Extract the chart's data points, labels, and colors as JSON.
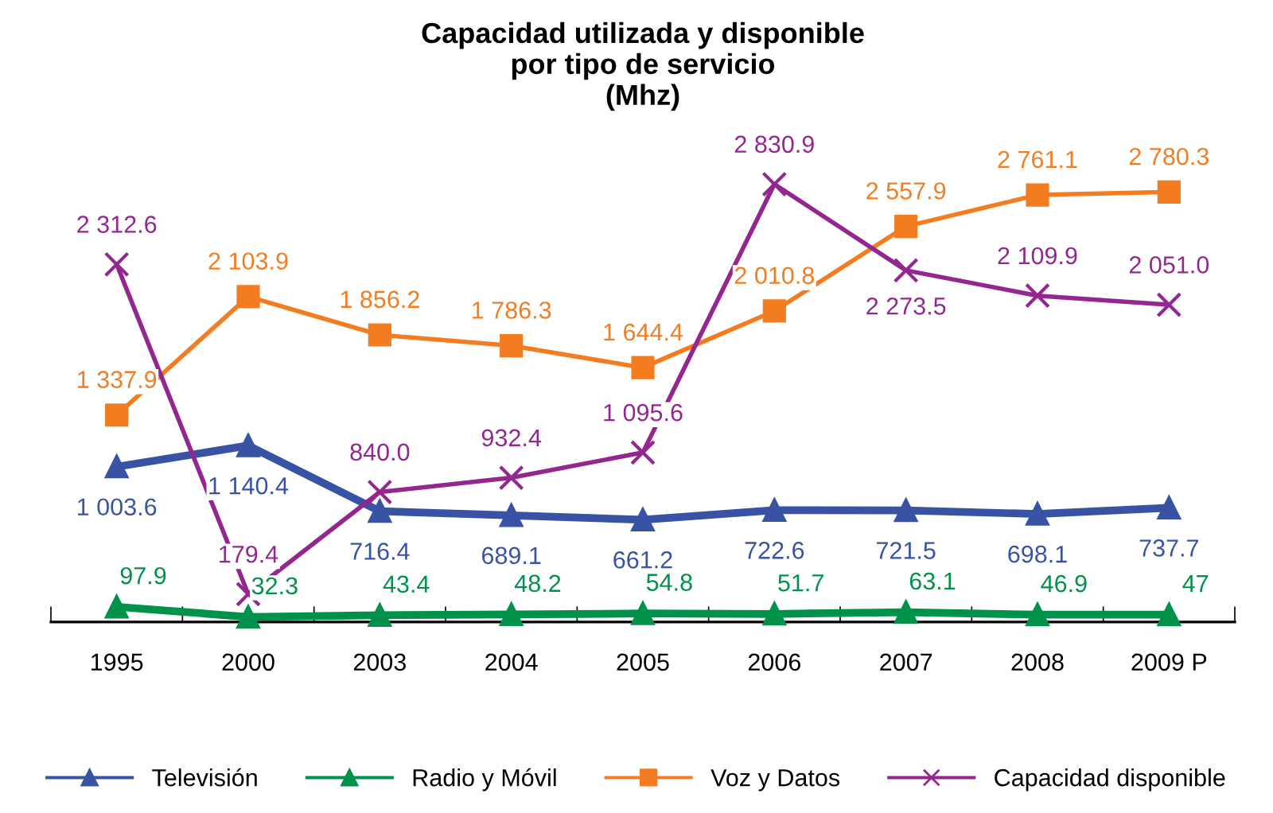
{
  "chart_data": {
    "type": "line",
    "title": "Capacidad utilizada y disponible\npor tipo de servicio\n(Mhz)",
    "categories": [
      "1995",
      "2000",
      "2003",
      "2004",
      "2005",
      "2006",
      "2007",
      "2008",
      "2009 P"
    ],
    "legend": "bottom",
    "grid": false,
    "data_labels": true,
    "series": [
      {
        "name": "Televisión",
        "color": "#3953a4",
        "marker": "triangle",
        "values": [
          1003.6,
          1140.4,
          716.4,
          689.1,
          661.2,
          722.6,
          721.5,
          698.1,
          737.7
        ],
        "value_labels": [
          "1 003.6",
          "1 140.4",
          "716.4",
          "689.1",
          "661.2",
          "722.6",
          "721.5",
          "698.1",
          "737.7"
        ]
      },
      {
        "name": "Radio y Móvil",
        "color": "#00924a",
        "marker": "triangle",
        "values": [
          97.9,
          32.3,
          43.4,
          48.2,
          54.8,
          51.7,
          63.1,
          46.9,
          47
        ],
        "value_labels": [
          "97.9",
          "32.3",
          "43.4",
          "48.2",
          "54.8",
          "51.7",
          "63.1",
          "46.9",
          "47"
        ]
      },
      {
        "name": "Voz y Datos",
        "color": "#f47c20",
        "marker": "square",
        "values": [
          1337.9,
          2103.9,
          1856.2,
          1786.3,
          1644.4,
          2010.8,
          2557.9,
          2761.1,
          2780.3
        ],
        "value_labels": [
          "1 337.9",
          "2 103.9",
          "1 856.2",
          "1 786.3",
          "1 644.4",
          "2 010.8",
          "2 557.9",
          "2 761.1",
          "2 780.3"
        ]
      },
      {
        "name": "Capacidad disponible",
        "color": "#93278f",
        "marker": "cross",
        "values": [
          2312.6,
          179.4,
          840.0,
          932.4,
          1095.6,
          2830.9,
          2273.5,
          2109.9,
          2051.0
        ],
        "value_labels": [
          "2 312.6",
          "179.4",
          "840.0",
          "932.4",
          "1 095.6",
          "2 830.9",
          "2 273.5",
          "2 109.9",
          "2 051.0"
        ]
      }
    ]
  }
}
